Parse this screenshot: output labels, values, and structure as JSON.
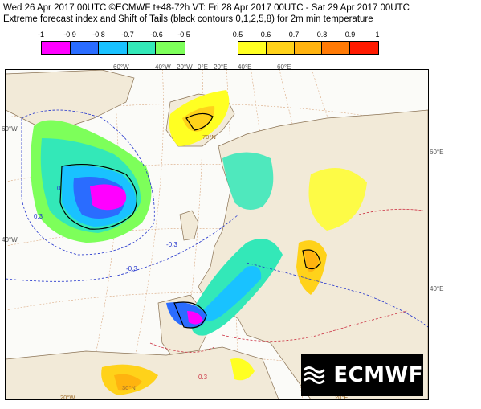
{
  "header": {
    "line1": "Wed 26 Apr 2017 00UTC ©ECMWF t+48-72h  VT: Fri 28 Apr 2017 00UTC - Sat 29 Apr 2017 00UTC",
    "line2": "Extreme forecast index and Shift of Tails (black contours 0,1,2,5,8) for 2m min temperature"
  },
  "legend_cold": {
    "ticks": [
      "-1",
      "-0.9",
      "-0.8",
      "-0.7",
      "-0.6",
      "-0.5"
    ],
    "colors": [
      "#ff00ff",
      "#2a6cff",
      "#19c2ff",
      "#33e8b8",
      "#7dff5a"
    ]
  },
  "legend_warm": {
    "ticks": [
      "0.5",
      "0.6",
      "0.7",
      "0.8",
      "0.9",
      "1"
    ],
    "colors": [
      "#ffff22",
      "#ffd21a",
      "#ffb30f",
      "#ff7a05",
      "#ff1a00"
    ]
  },
  "map": {
    "top_labels": [
      "60°W",
      "40°W",
      "20°W",
      "0°E",
      "20°E",
      "40°E",
      "60°E"
    ],
    "left_labels": [
      "60°W",
      "40°W"
    ],
    "right_labels": [
      "60°E",
      "40°E"
    ],
    "bottom_labels": [
      "20°W",
      "30°N",
      "20°E"
    ],
    "inner_labels": [
      "70°N"
    ],
    "contour_labels": [
      "0.3",
      "-0.3",
      "0"
    ],
    "logo_text": "ECMWF"
  }
}
